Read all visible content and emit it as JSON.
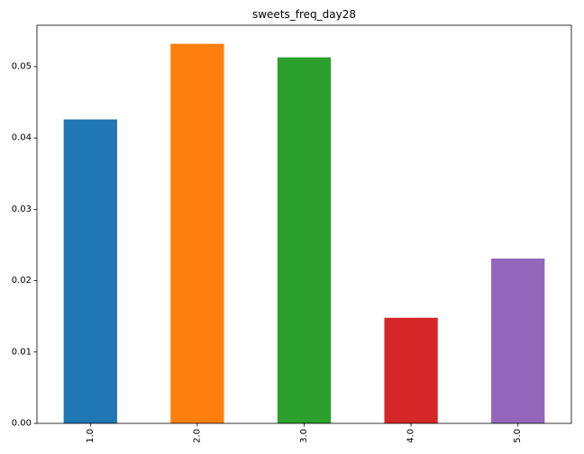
{
  "chart_data": {
    "type": "bar",
    "title": "sweets_freq_day28",
    "xlabel": "",
    "ylabel": "",
    "categories": [
      "1.0",
      "2.0",
      "3.0",
      "4.0",
      "5.0"
    ],
    "values": [
      0.0426,
      0.0532,
      0.0513,
      0.0148,
      0.0231
    ],
    "colors": [
      "#1f77b4",
      "#ff7f0e",
      "#2ca02c",
      "#d62728",
      "#9467bd"
    ],
    "ylim": [
      0,
      0.0558
    ],
    "yticks": [
      0.0,
      0.01,
      0.02,
      0.03,
      0.04,
      0.05
    ],
    "ytick_labels": [
      "0.00",
      "0.01",
      "0.02",
      "0.03",
      "0.04",
      "0.05"
    ],
    "grid": false,
    "legend": "none",
    "xtick_rotation": "vertical"
  }
}
